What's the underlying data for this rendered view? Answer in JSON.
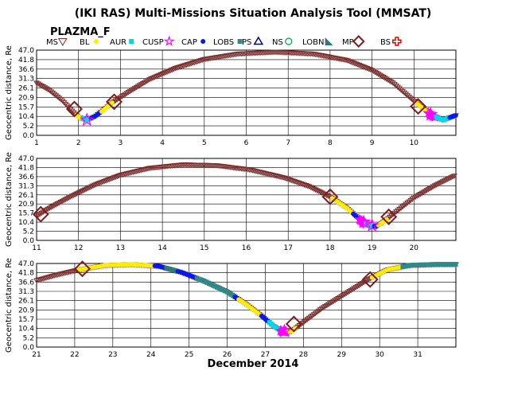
{
  "page": {
    "title": "(IKI RAS) Multi-Missions Situation Analysis Tool (MMSAT)",
    "mission": "PLAZMA_F",
    "xlabel": "December 2014"
  },
  "legend": [
    {
      "label": "MS",
      "marker": "triangle-down",
      "color": "#7a2e2e"
    },
    {
      "label": "BL",
      "marker": "dot",
      "color": "#ffee00"
    },
    {
      "label": "AUR",
      "marker": "square",
      "color": "#00d8e8"
    },
    {
      "label": "CUSP",
      "marker": "star",
      "color": "#ff00ff"
    },
    {
      "label": "CAP",
      "marker": "dot",
      "color": "#0018ff"
    },
    {
      "label": "LOBS",
      "marker": "square",
      "color": "#2e8a8a"
    },
    {
      "label": "PS",
      "marker": "triangle-up",
      "color": "#00008b"
    },
    {
      "label": "NS",
      "marker": "circle",
      "color": "#00a050"
    },
    {
      "label": "LOBN",
      "marker": "wedge",
      "color": "#2e7a7a"
    },
    {
      "label": "MP",
      "marker": "diamond",
      "color": "#7a1e1e"
    },
    {
      "label": "BS",
      "marker": "cross",
      "color": "#e00000"
    }
  ],
  "chart_data": [
    {
      "type": "scatter",
      "panel": 1,
      "ylabel": "Geocentric distance, Re",
      "xlim": [
        1,
        11
      ],
      "ylim": [
        0,
        47
      ],
      "yticks": [
        "0.0",
        "5.2",
        "10.4",
        "15.7",
        "20.9",
        "26.1",
        "31.3",
        "36.6",
        "41.8",
        "47.0"
      ],
      "xticks": [
        "1",
        "2",
        "3",
        "4",
        "5",
        "6",
        "7",
        "8",
        "9",
        "10"
      ],
      "xtick_values": [
        1,
        2,
        3,
        4,
        5,
        6,
        7,
        8,
        9,
        10
      ],
      "grid": true,
      "orbit": [
        [
          1.0,
          29.0
        ],
        [
          1.3,
          25.0
        ],
        [
          1.6,
          19.5
        ],
        [
          1.85,
          13.5
        ],
        [
          2.0,
          10.0
        ],
        [
          2.2,
          8.5
        ],
        [
          2.4,
          10.5
        ],
        [
          2.6,
          14.0
        ],
        [
          2.8,
          18.0
        ],
        [
          3.2,
          24.0
        ],
        [
          3.7,
          31.0
        ],
        [
          4.3,
          37.0
        ],
        [
          5.0,
          42.0
        ],
        [
          5.8,
          45.0
        ],
        [
          6.7,
          46.0
        ],
        [
          7.6,
          45.0
        ],
        [
          8.4,
          41.5
        ],
        [
          9.0,
          36.0
        ],
        [
          9.5,
          29.0
        ],
        [
          9.9,
          21.0
        ],
        [
          10.2,
          15.0
        ],
        [
          10.45,
          10.5
        ],
        [
          10.7,
          8.5
        ],
        [
          11.0,
          11.0
        ]
      ],
      "segments": [
        {
          "region": "BL",
          "x": [
            1.95,
            2.1
          ]
        },
        {
          "region": "AUR",
          "x": [
            2.1,
            2.3
          ]
        },
        {
          "region": "CAP",
          "x": [
            2.3,
            2.55
          ]
        },
        {
          "region": "BL",
          "x": [
            2.55,
            2.8
          ]
        },
        {
          "region": "BL",
          "x": [
            10.05,
            10.3
          ]
        },
        {
          "region": "CUSP",
          "x": [
            10.35,
            10.5
          ]
        },
        {
          "region": "AUR",
          "x": [
            10.5,
            10.85
          ]
        },
        {
          "region": "CAP",
          "x": [
            10.85,
            11.0
          ]
        }
      ],
      "mp_crossings": [
        [
          1.9,
          14.5
        ],
        [
          2.85,
          18.5
        ],
        [
          10.1,
          16.0
        ]
      ],
      "cusp_markers": [
        [
          2.2,
          8.5
        ],
        [
          10.4,
          11.5
        ]
      ]
    },
    {
      "type": "scatter",
      "panel": 2,
      "ylabel": "Geocentric distance, Re",
      "xlim": [
        11,
        21
      ],
      "ylim": [
        0,
        47
      ],
      "yticks": [
        "0.0",
        "5.2",
        "10.4",
        "15.7",
        "20.9",
        "26.1",
        "31.3",
        "36.6",
        "41.8",
        "47.0"
      ],
      "xticks": [
        "11",
        "12",
        "13",
        "14",
        "15",
        "16",
        "17",
        "18",
        "19",
        "20"
      ],
      "xtick_values": [
        11,
        12,
        13,
        14,
        15,
        16,
        17,
        18,
        19,
        20
      ],
      "grid": true,
      "orbit": [
        [
          11.0,
          14.0
        ],
        [
          11.3,
          18.5
        ],
        [
          11.8,
          25.0
        ],
        [
          12.4,
          32.0
        ],
        [
          13.0,
          37.5
        ],
        [
          13.7,
          41.5
        ],
        [
          14.5,
          43.5
        ],
        [
          15.3,
          43.0
        ],
        [
          16.1,
          40.5
        ],
        [
          16.9,
          36.0
        ],
        [
          17.5,
          31.0
        ],
        [
          18.0,
          25.0
        ],
        [
          18.4,
          18.5
        ],
        [
          18.7,
          12.0
        ],
        [
          18.9,
          8.5
        ],
        [
          19.1,
          8.0
        ],
        [
          19.3,
          11.0
        ],
        [
          19.6,
          17.0
        ],
        [
          20.0,
          24.5
        ],
        [
          20.5,
          31.5
        ],
        [
          21.0,
          37.5
        ]
      ],
      "segments": [
        {
          "region": "BL",
          "x": [
            18.05,
            18.55
          ]
        },
        {
          "region": "CAP",
          "x": [
            18.55,
            18.7
          ]
        },
        {
          "region": "CUSP",
          "x": [
            18.7,
            18.85
          ]
        },
        {
          "region": "AUR",
          "x": [
            18.85,
            19.05
          ]
        },
        {
          "region": "CAP",
          "x": [
            19.05,
            19.15
          ]
        },
        {
          "region": "BL",
          "x": [
            19.15,
            19.35
          ]
        }
      ],
      "mp_crossings": [
        [
          11.1,
          15.0
        ],
        [
          18.0,
          25.0
        ],
        [
          19.4,
          13.5
        ]
      ],
      "cusp_markers": [
        [
          18.8,
          10.5
        ],
        [
          19.0,
          8.5
        ]
      ]
    },
    {
      "type": "scatter",
      "panel": 3,
      "ylabel": "Geocentric distance, Re",
      "xlim": [
        21,
        32
      ],
      "ylim": [
        0,
        47
      ],
      "yticks": [
        "0.0",
        "5.2",
        "10.4",
        "15.7",
        "20.9",
        "26.1",
        "31.3",
        "36.6",
        "41.8",
        "47.0"
      ],
      "xticks": [
        "21",
        "22",
        "23",
        "24",
        "25",
        "26",
        "27",
        "28",
        "29",
        "30",
        "31"
      ],
      "xtick_values": [
        21,
        22,
        23,
        24,
        25,
        26,
        27,
        28,
        29,
        30,
        31
      ],
      "grid": true,
      "orbit": [
        [
          21.0,
          37.5
        ],
        [
          21.5,
          40.5
        ],
        [
          22.1,
          43.5
        ],
        [
          22.8,
          46.0
        ],
        [
          23.5,
          46.5
        ],
        [
          24.2,
          45.5
        ],
        [
          24.8,
          42.0
        ],
        [
          25.4,
          37.0
        ],
        [
          26.0,
          31.0
        ],
        [
          26.5,
          24.0
        ],
        [
          26.9,
          17.5
        ],
        [
          27.2,
          12.0
        ],
        [
          27.45,
          8.5
        ],
        [
          27.7,
          9.0
        ],
        [
          28.0,
          14.0
        ],
        [
          28.5,
          22.0
        ],
        [
          29.1,
          30.0
        ],
        [
          29.7,
          38.0
        ],
        [
          30.2,
          43.5
        ],
        [
          30.8,
          46.0
        ],
        [
          31.5,
          46.5
        ],
        [
          32.0,
          46.5
        ]
      ],
      "segments": [
        {
          "region": "BL",
          "x": [
            22.1,
            24.1
          ]
        },
        {
          "region": "CAP",
          "x": [
            24.1,
            24.4
          ]
        },
        {
          "region": "LOBN",
          "x": [
            24.4,
            24.7
          ]
        },
        {
          "region": "CAP",
          "x": [
            24.7,
            25.2
          ]
        },
        {
          "region": "LOBS",
          "x": [
            25.2,
            26.2
          ]
        },
        {
          "region": "CAP",
          "x": [
            26.2,
            26.3
          ]
        },
        {
          "region": "BL",
          "x": [
            26.3,
            26.9
          ]
        },
        {
          "region": "CAP",
          "x": [
            26.9,
            27.1
          ]
        },
        {
          "region": "AUR",
          "x": [
            27.1,
            27.4
          ]
        },
        {
          "region": "CUSP",
          "x": [
            27.4,
            27.55
          ]
        },
        {
          "region": "BL",
          "x": [
            27.6,
            27.8
          ]
        },
        {
          "region": "BL",
          "x": [
            29.8,
            30.6
          ]
        },
        {
          "region": "LOBS",
          "x": [
            30.6,
            32.0
          ]
        }
      ],
      "mp_crossings": [
        [
          22.2,
          44.0
        ],
        [
          27.75,
          13.0
        ],
        [
          29.75,
          38.0
        ]
      ],
      "cusp_markers": [
        [
          27.5,
          9.0
        ]
      ]
    }
  ]
}
